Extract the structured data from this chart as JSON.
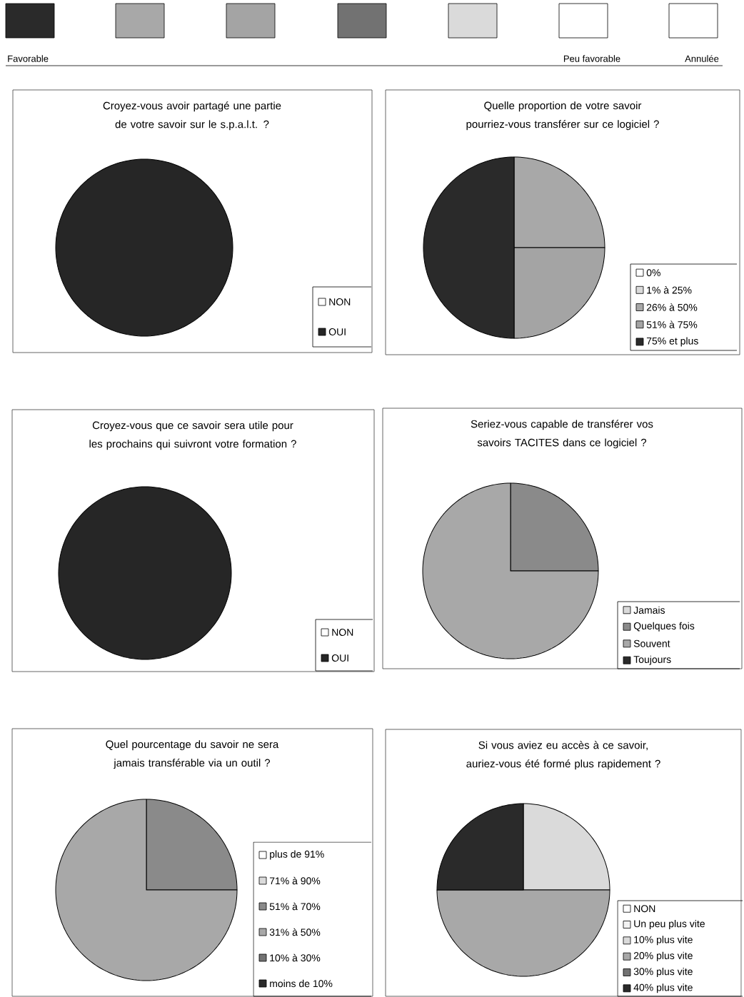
{
  "chart_data": [
    {
      "type": "other",
      "colors": [
        "#2a2a2a",
        "#a8a8a8",
        "#a4a4a4",
        "#727272",
        "#dadada",
        "#ffffff",
        "#ffffff"
      ],
      "annotations": [
        "Favorable",
        "Peu favorable",
        "Annulée"
      ]
    },
    {
      "type": "pie",
      "title": "Croyez-vous avoir partagé une partie de votre savoir sur le s.p.a.l.t. ?",
      "categories": [
        "NON",
        "OUI"
      ],
      "values": [
        0,
        100
      ],
      "colors": [
        "#ffffff",
        "#262626"
      ],
      "legend": "bottom right"
    },
    {
      "type": "pie",
      "title": "Quelle proportion de votre savoir pourriez-vous transférer sur ce logiciel ?",
      "categories": [
        "0%",
        "1% à 25%",
        "26% à 50%",
        "51% à 75%",
        "75% et plus"
      ],
      "values": [
        0,
        0,
        25,
        25,
        50
      ],
      "colors": [
        "#ffffff",
        "#dadada",
        "#a8a8a8",
        "#a4a4a4",
        "#2a2a2a"
      ],
      "legend": "bottom right"
    },
    {
      "type": "pie",
      "title": "Croyez-vous que ce savoir sera utile pour les prochains qui suivront votre formation ?",
      "categories": [
        "NON",
        "OUI"
      ],
      "values": [
        0,
        100
      ],
      "colors": [
        "#ffffff",
        "#262626"
      ],
      "legend": "bottom right"
    },
    {
      "type": "pie",
      "title": "Seriez-vous capable de transférer vos savoirs TACITES dans ce logiciel ?",
      "categories": [
        "Jamais",
        "Quelques fois",
        "Souvent",
        "Toujours"
      ],
      "values": [
        0,
        25,
        75,
        0
      ],
      "colors": [
        "#dadada",
        "#8a8a8a",
        "#a8a8a8",
        "#2a2a2a"
      ],
      "legend": "bottom right"
    },
    {
      "type": "pie",
      "title": "Quel pourcentage du savoir ne sera jamais transférable via un outil ?",
      "categories": [
        "plus de 91%",
        "71% à 90%",
        "51% à 70%",
        "31% à 50%",
        "10% à 30%",
        "moins de 10%"
      ],
      "values": [
        0,
        0,
        25,
        75,
        0,
        0
      ],
      "colors": [
        "#ffffff",
        "#dadada",
        "#8a8a8a",
        "#a8a8a8",
        "#727272",
        "#2a2a2a"
      ],
      "legend": "bottom right"
    },
    {
      "type": "pie",
      "title": "Si vous aviez eu accès à ce savoir, auriez-vous été formé plus rapidement ?",
      "categories": [
        "NON",
        "Un peu plus vite",
        "10% plus vite",
        "20% plus vite",
        "30% plus vite",
        "40% plus vite"
      ],
      "values": [
        0,
        0,
        25,
        50,
        0,
        25
      ],
      "colors": [
        "#ffffff",
        "#f2f2f2",
        "#dadada",
        "#a8a8a8",
        "#727272",
        "#2a2a2a"
      ],
      "legend": "bottom right"
    }
  ]
}
